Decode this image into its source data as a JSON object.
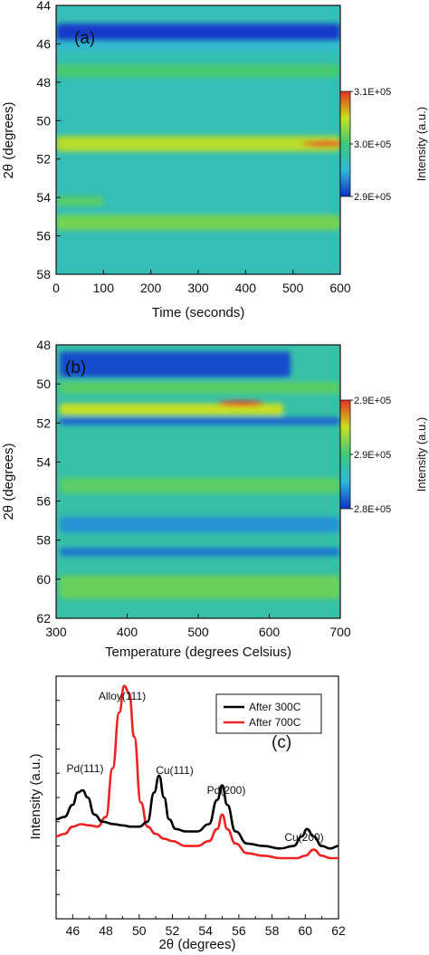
{
  "colors": {
    "low": "#1030c8",
    "mid_low": "#30b8d8",
    "mid": "#3ec878",
    "mid_high": "#c8e020",
    "high": "#e83020",
    "curve_300": "#000000",
    "curve_700": "#ee2222"
  },
  "chart_data": [
    {
      "type": "heatmap",
      "panel_label": "(a)",
      "xlabel": "Time (seconds)",
      "ylabel": "2θ (degrees)",
      "xlim": [
        0,
        600
      ],
      "ylim": [
        58,
        44
      ],
      "xticks": [
        "0",
        "100",
        "200",
        "300",
        "400",
        "500",
        "600"
      ],
      "yticks": [
        "44",
        "46",
        "48",
        "50",
        "52",
        "54",
        "56",
        "58"
      ],
      "colorbar": {
        "label": "Intensity (a.u.)",
        "ticks": [
          "3.1E+05",
          "3.0E+05",
          "2.9E+05"
        ],
        "range": [
          290000,
          310000
        ]
      },
      "bands": [
        {
          "center": 45.4,
          "width": 0.9,
          "level": 0.02,
          "x_start": 0,
          "x_end": 600
        },
        {
          "center": 46.1,
          "width": 0.5,
          "level": 0.28,
          "x_start": 0,
          "x_end": 600
        },
        {
          "center": 47.4,
          "width": 0.7,
          "level": 0.52,
          "x_start": 0,
          "x_end": 600
        },
        {
          "center": 51.2,
          "width": 0.8,
          "level": 0.72,
          "x_start": 0,
          "x_end": 600
        },
        {
          "center": 54.2,
          "width": 0.5,
          "level": 0.55,
          "x_start": 0,
          "x_end": 100
        },
        {
          "center": 55.3,
          "width": 0.8,
          "level": 0.6,
          "x_start": 0,
          "x_end": 600
        }
      ],
      "hotspots": [
        {
          "x": 570,
          "y": 51.2,
          "level": 1.0
        }
      ],
      "background_level": 0.34
    },
    {
      "type": "heatmap",
      "panel_label": "(b)",
      "xlabel": "Temperature (degrees Celsius)",
      "ylabel": "2θ (degrees)",
      "xlim": [
        300,
        700
      ],
      "ylim": [
        62,
        48
      ],
      "xticks": [
        "300",
        "400",
        "500",
        "600",
        "700"
      ],
      "yticks": [
        "48",
        "50",
        "52",
        "54",
        "56",
        "58",
        "60",
        "62"
      ],
      "colorbar": {
        "label": "Intensity (a.u.)",
        "ticks": [
          "2.9E+05",
          "2.9E+05",
          "2.8E+05"
        ],
        "range": [
          280000,
          290000
        ]
      },
      "bands": [
        {
          "center": 49.0,
          "width": 1.3,
          "level": 0.05,
          "x_start": 305,
          "x_end": 630
        },
        {
          "center": 50.2,
          "width": 0.6,
          "level": 0.55,
          "x_start": 305,
          "x_end": 700
        },
        {
          "center": 51.3,
          "width": 0.6,
          "level": 0.75,
          "x_start": 305,
          "x_end": 620
        },
        {
          "center": 51.9,
          "width": 0.4,
          "level": 0.1,
          "x_start": 305,
          "x_end": 700
        },
        {
          "center": 55.2,
          "width": 0.8,
          "level": 0.55,
          "x_start": 305,
          "x_end": 700
        },
        {
          "center": 57.2,
          "width": 0.8,
          "level": 0.18,
          "x_start": 305,
          "x_end": 700
        },
        {
          "center": 58.6,
          "width": 0.4,
          "level": 0.12,
          "x_start": 305,
          "x_end": 700
        },
        {
          "center": 60.4,
          "width": 1.2,
          "level": 0.58,
          "x_start": 305,
          "x_end": 700
        }
      ],
      "hotspots": [
        {
          "x": 560,
          "y": 51.0,
          "level": 1.0
        }
      ],
      "background_level": 0.38
    },
    {
      "type": "line",
      "panel_label": "(c)",
      "xlabel": "2θ (degrees)",
      "ylabel": "Intensity (a.u.)",
      "xlim": [
        45,
        62
      ],
      "ylim": [
        0,
        100
      ],
      "xticks": [
        "46",
        "48",
        "50",
        "52",
        "54",
        "56",
        "58",
        "60",
        "62"
      ],
      "series": [
        {
          "name": "After 300C",
          "x": [
            45,
            45.5,
            46,
            46.3,
            46.6,
            46.9,
            47.3,
            47.8,
            48.5,
            49,
            49.5,
            50,
            50.5,
            50.9,
            51.2,
            51.5,
            51.8,
            52.2,
            52.8,
            53.5,
            54.2,
            54.7,
            55,
            55.3,
            55.8,
            56.5,
            57.5,
            58.5,
            59.3,
            59.8,
            60.1,
            60.5,
            61,
            61.5,
            62
          ],
          "y": [
            41,
            42,
            47,
            52,
            53,
            50,
            43,
            40,
            39,
            38.5,
            38,
            38,
            40,
            52,
            59,
            50,
            41,
            37,
            36,
            36,
            39,
            49,
            55,
            47,
            36,
            31,
            30,
            29,
            30,
            34,
            37,
            34,
            30,
            29,
            30
          ]
        },
        {
          "name": "After 700C",
          "x": [
            45,
            45.5,
            46,
            46.5,
            47,
            47.5,
            48,
            48.4,
            48.8,
            49.1,
            49.4,
            49.7,
            50.1,
            50.5,
            51,
            51.5,
            52,
            52.8,
            53.5,
            54.2,
            54.7,
            55,
            55.3,
            55.8,
            56.5,
            57.5,
            58.5,
            59.5,
            60,
            60.5,
            61,
            61.5,
            62
          ],
          "y": [
            34,
            35,
            38,
            39,
            38.5,
            38,
            42,
            62,
            85,
            96,
            93,
            75,
            48,
            38,
            35,
            33,
            32,
            30,
            30,
            32,
            37,
            43,
            37,
            31,
            27,
            26,
            25,
            25,
            26,
            28.5,
            26,
            25,
            25
          ]
        }
      ],
      "legend_position": "top-right",
      "annotations": [
        "Alloy(111)",
        "Pd(111)",
        "Cu(111)",
        "Pd(200)",
        "Cu(200)"
      ]
    }
  ]
}
